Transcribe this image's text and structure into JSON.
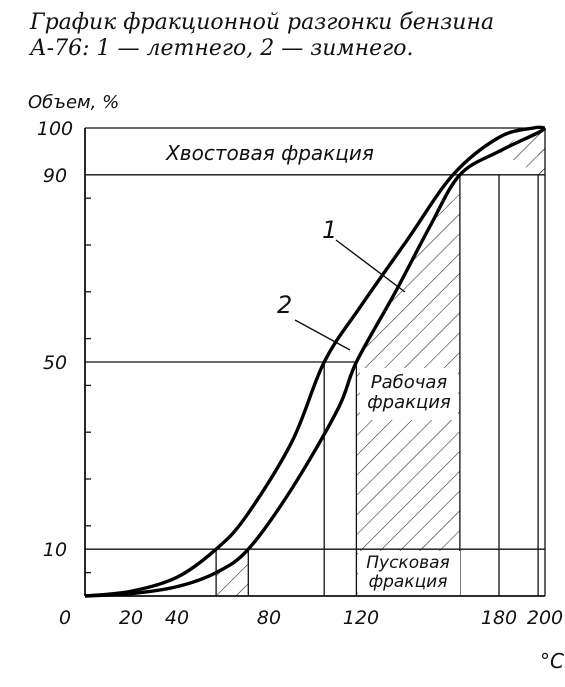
{
  "caption": "График фракционной разгонки бензина А-76: 1 — летнего, 2 — зимнего.",
  "chart_data": {
    "type": "line",
    "ylabel": "Объем, %",
    "xlabel": "°C",
    "xlim": [
      0,
      200
    ],
    "ylim": [
      0,
      100
    ],
    "x_ticks": [
      "0",
      "20",
      "40",
      "80",
      "120",
      "180",
      "200"
    ],
    "x_tick_values": [
      0,
      20,
      40,
      80,
      120,
      180,
      200
    ],
    "y_ticks": [
      "10",
      "50",
      "90",
      "100"
    ],
    "y_tick_values": [
      10,
      50,
      90,
      100
    ],
    "series": [
      {
        "name": "1",
        "x": [
          0,
          20,
          40,
          57,
          70,
          90,
          104,
          120,
          140,
          160,
          180,
          195,
          200
        ],
        "y": [
          0,
          1,
          4,
          10,
          17,
          33,
          50,
          62,
          76,
          90,
          98,
          100,
          100
        ]
      },
      {
        "name": "2",
        "x": [
          0,
          20,
          40,
          57,
          71,
          90,
          110,
          118,
          135,
          150,
          163,
          180,
          197,
          200
        ],
        "y": [
          0,
          0.5,
          2,
          5,
          10,
          23,
          40,
          50,
          65,
          79,
          90,
          95,
          99,
          100
        ]
      }
    ],
    "fractions": [
      {
        "label": "Хвостовая фракция"
      },
      {
        "label": "Рабочая фракция"
      },
      {
        "label": "Пусковая фракция"
      }
    ],
    "grid": false,
    "legend": "inline curve labels"
  }
}
